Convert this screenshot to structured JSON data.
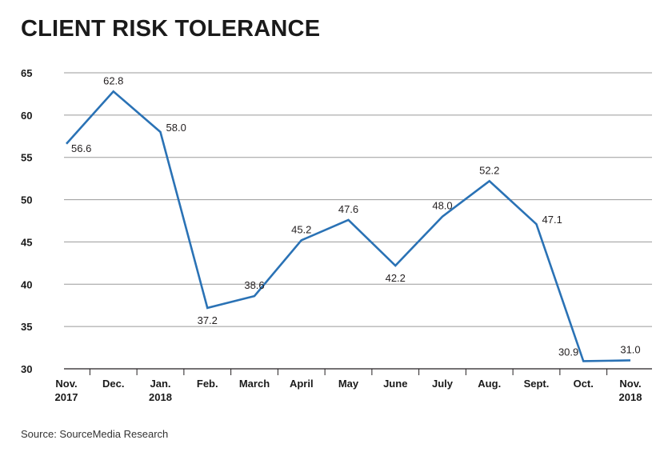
{
  "header": {
    "title": "CLIENT RISK TOLERANCE"
  },
  "footer": {
    "source": "Source: SourceMedia Research"
  },
  "chart_data": {
    "type": "line",
    "title": "CLIENT RISK TOLERANCE",
    "xlabel": "",
    "ylabel": "",
    "ylim": [
      30,
      65
    ],
    "yticks": [
      30,
      35,
      40,
      45,
      50,
      55,
      60,
      65
    ],
    "grid": true,
    "line_color": "#2a72b5",
    "categories": [
      [
        "Nov.",
        "2017"
      ],
      [
        "Dec."
      ],
      [
        "Jan.",
        "2018"
      ],
      [
        "Feb."
      ],
      [
        "March"
      ],
      [
        "April"
      ],
      [
        "May"
      ],
      [
        "June"
      ],
      [
        "July"
      ],
      [
        "Aug."
      ],
      [
        "Sept."
      ],
      [
        "Oct."
      ],
      [
        "Nov.",
        "2018"
      ]
    ],
    "series": [
      {
        "name": "Client risk tolerance",
        "values": [
          56.6,
          62.8,
          58.0,
          37.2,
          38.6,
          45.2,
          47.6,
          42.2,
          48.0,
          52.2,
          47.1,
          30.9,
          31.0
        ],
        "labels": [
          "56.6",
          "62.8",
          "58.0",
          "37.2",
          "38.6",
          "45.2",
          "47.6",
          "42.2",
          "48.0",
          "52.2",
          "47.1",
          "30.9",
          "31.0"
        ]
      }
    ]
  }
}
